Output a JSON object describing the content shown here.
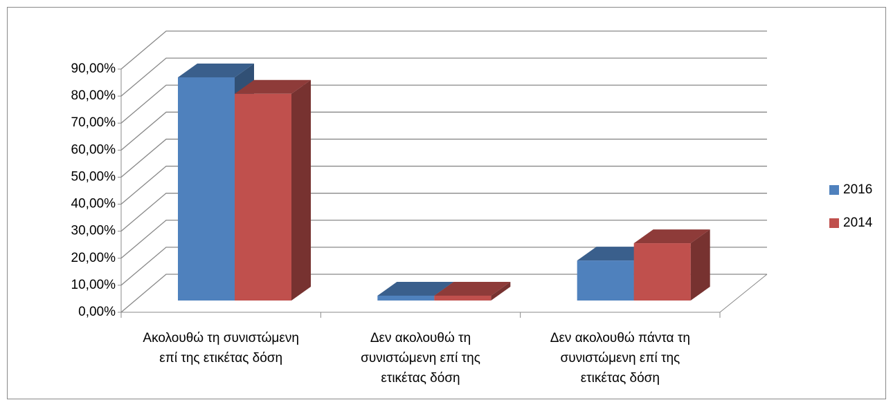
{
  "chart_data": {
    "type": "bar3d",
    "categories": [
      "Ακολουθώ  τη συνιστώμενη επί της ετικέτας δόση",
      "Δεν ακολουθώ  τη συνιστώμενη επί της ετικέτας δόση",
      "Δεν ακολουθώ πάντα τη συνιστώμενη επί της ετικέτας δόση"
    ],
    "series": [
      {
        "name": "2016",
        "color": "#4f81bd",
        "values": [
          82.6,
          1.8,
          14.8
        ]
      },
      {
        "name": "2014",
        "color": "#c0504d",
        "values": [
          76.5,
          1.8,
          21.2
        ]
      }
    ],
    "ylim": [
      0,
      90
    ],
    "yticks": [
      {
        "value": 0,
        "label": "0,00%"
      },
      {
        "value": 10,
        "label": "10,00%"
      },
      {
        "value": 20,
        "label": "20,00%"
      },
      {
        "value": 30,
        "label": "30,00%"
      },
      {
        "value": 40,
        "label": "40,00%"
      },
      {
        "value": 50,
        "label": "50,00%"
      },
      {
        "value": 60,
        "label": "60,00%"
      },
      {
        "value": 70,
        "label": "70,00%"
      },
      {
        "value": 80,
        "label": "80,00%"
      },
      {
        "value": 90,
        "label": "90,00%"
      }
    ],
    "grid": true,
    "legend": "right"
  }
}
